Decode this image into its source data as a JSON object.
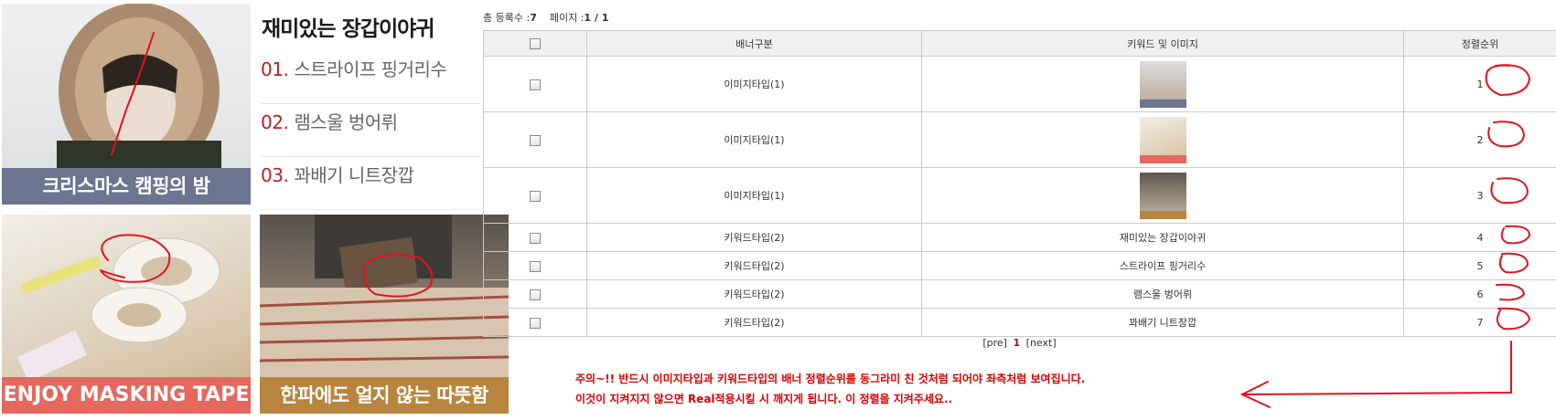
{
  "promo": {
    "banner1_caption": "크리스마스 캠핑의 밤",
    "banner2_caption": "ENJOY MASKING TAPE",
    "banner3_caption": "한파에도 얼지 않는 따뜻함",
    "keyword_title": "재미있는 장갑이야귀",
    "keywords": [
      {
        "num": "01.",
        "text": "스트라이프 핑거리수"
      },
      {
        "num": "02.",
        "text": "램스울 벙어뤼"
      },
      {
        "num": "03.",
        "text": "꽈배기 니트장깝"
      }
    ]
  },
  "summary": {
    "total_label": "총 등록수 :",
    "total": "7",
    "page_label": "페이지 :",
    "page": "1 / 1"
  },
  "table": {
    "headers": {
      "type": "배너구분",
      "keyword_image": "키워드 및 이미지",
      "order": "정렬순위"
    },
    "rows": [
      {
        "type": "이미지타입(1)",
        "content": "",
        "order": "1"
      },
      {
        "type": "이미지타입(1)",
        "content": "",
        "order": "2"
      },
      {
        "type": "이미지타입(1)",
        "content": "",
        "order": "3"
      },
      {
        "type": "키워드타입(2)",
        "content": "재미있는 장갑이야귀",
        "order": "4"
      },
      {
        "type": "키워드타입(2)",
        "content": "스트라이프 핑거리수",
        "order": "5"
      },
      {
        "type": "키워드타입(2)",
        "content": "램스울 벙어뤼",
        "order": "6"
      },
      {
        "type": "키워드타입(2)",
        "content": "꽈배기 니트장깝",
        "order": "7"
      }
    ]
  },
  "pager": {
    "prev": "[pre]",
    "current": "1",
    "next": "[next]"
  },
  "notice": {
    "line1": "주의~!! 반드시 이미지타입과 키워드타입의 배너 정렬순위를 동그라미 친 것처럼 되어야 좌측처럼 보여집니다.",
    "line2": "이것이 지켜지지 않으면 Real적용시킬 시 깨지게 됩니다. 이 정렬을 지켜주세요.."
  },
  "colors": {
    "annotation": "#e0141e",
    "notice": "#d80000",
    "accent_number": "#b4232a"
  }
}
